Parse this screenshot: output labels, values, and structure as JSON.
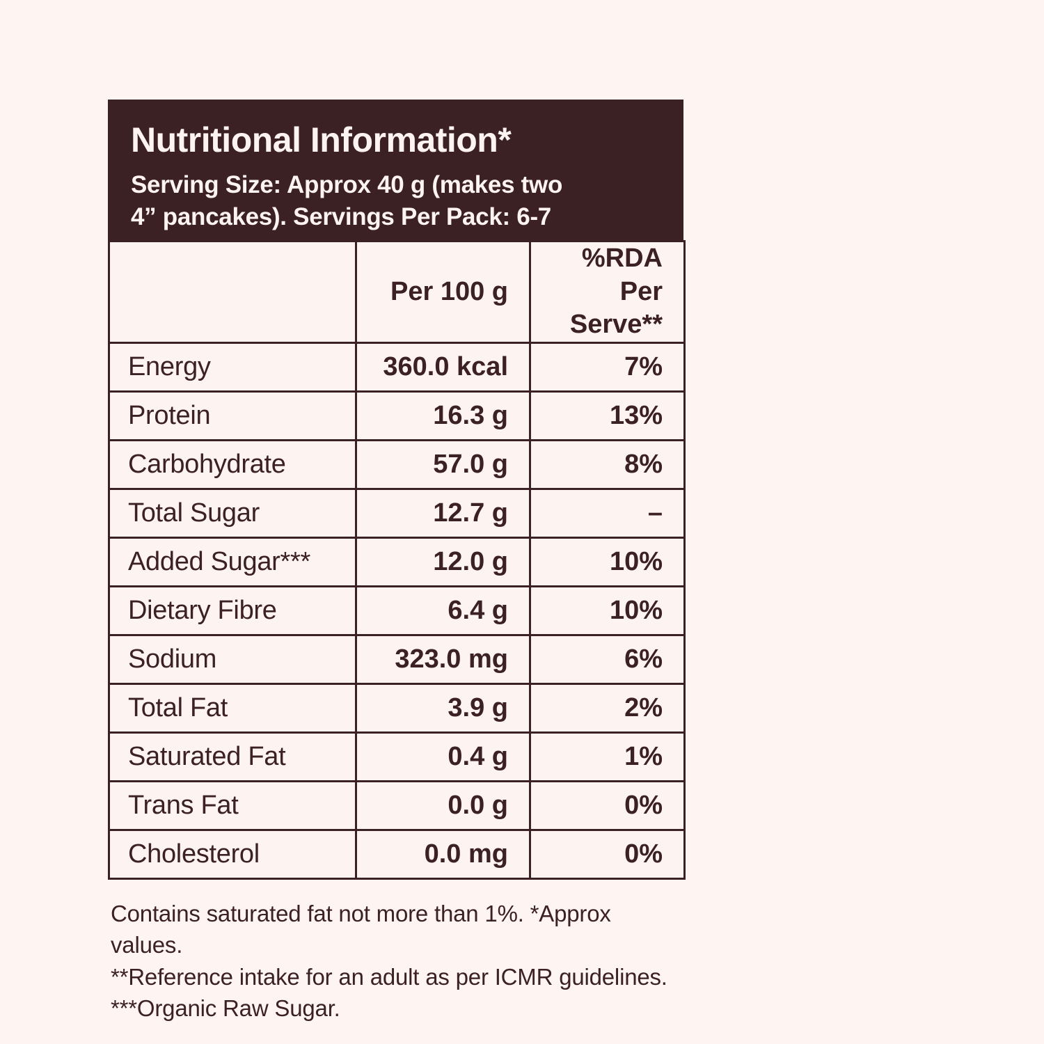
{
  "colors": {
    "brand_dark": "#3B2024",
    "panel_text": "#FDF4F1",
    "page_background": "#FEF5F2",
    "cell_background": "#FDF3F0"
  },
  "header": {
    "title": "Nutritional Information*",
    "serving_line1": "Serving Size: Approx 40 g (makes two",
    "serving_line2": "4” pancakes). Servings Per Pack: 6-7"
  },
  "table": {
    "columns": [
      "",
      "Per 100 g",
      "%RDA Per Serve**"
    ],
    "rows": [
      {
        "label": "Energy",
        "per100": "360.0 kcal",
        "rda": "7%"
      },
      {
        "label": "Protein",
        "per100": "16.3 g",
        "rda": "13%"
      },
      {
        "label": "Carbohydrate",
        "per100": "57.0 g",
        "rda": "8%"
      },
      {
        "label": "Total Sugar",
        "per100": "12.7 g",
        "rda": "–"
      },
      {
        "label": "Added Sugar***",
        "per100": "12.0 g",
        "rda": "10%"
      },
      {
        "label": "Dietary Fibre",
        "per100": "6.4 g",
        "rda": "10%"
      },
      {
        "label": "Sodium",
        "per100": "323.0 mg",
        "rda": "6%"
      },
      {
        "label": "Total Fat",
        "per100": "3.9 g",
        "rda": "2%"
      },
      {
        "label": "Saturated Fat",
        "per100": "0.4 g",
        "rda": "1%"
      },
      {
        "label": "Trans Fat",
        "per100": "0.0 g",
        "rda": "0%"
      },
      {
        "label": "Cholesterol",
        "per100": "0.0 mg",
        "rda": "0%"
      }
    ]
  },
  "footnotes": [
    "Contains saturated fat not more than 1%. *Approx values.",
    "**Reference intake for an adult as per ICMR guidelines.",
    "***Organic Raw Sugar."
  ]
}
